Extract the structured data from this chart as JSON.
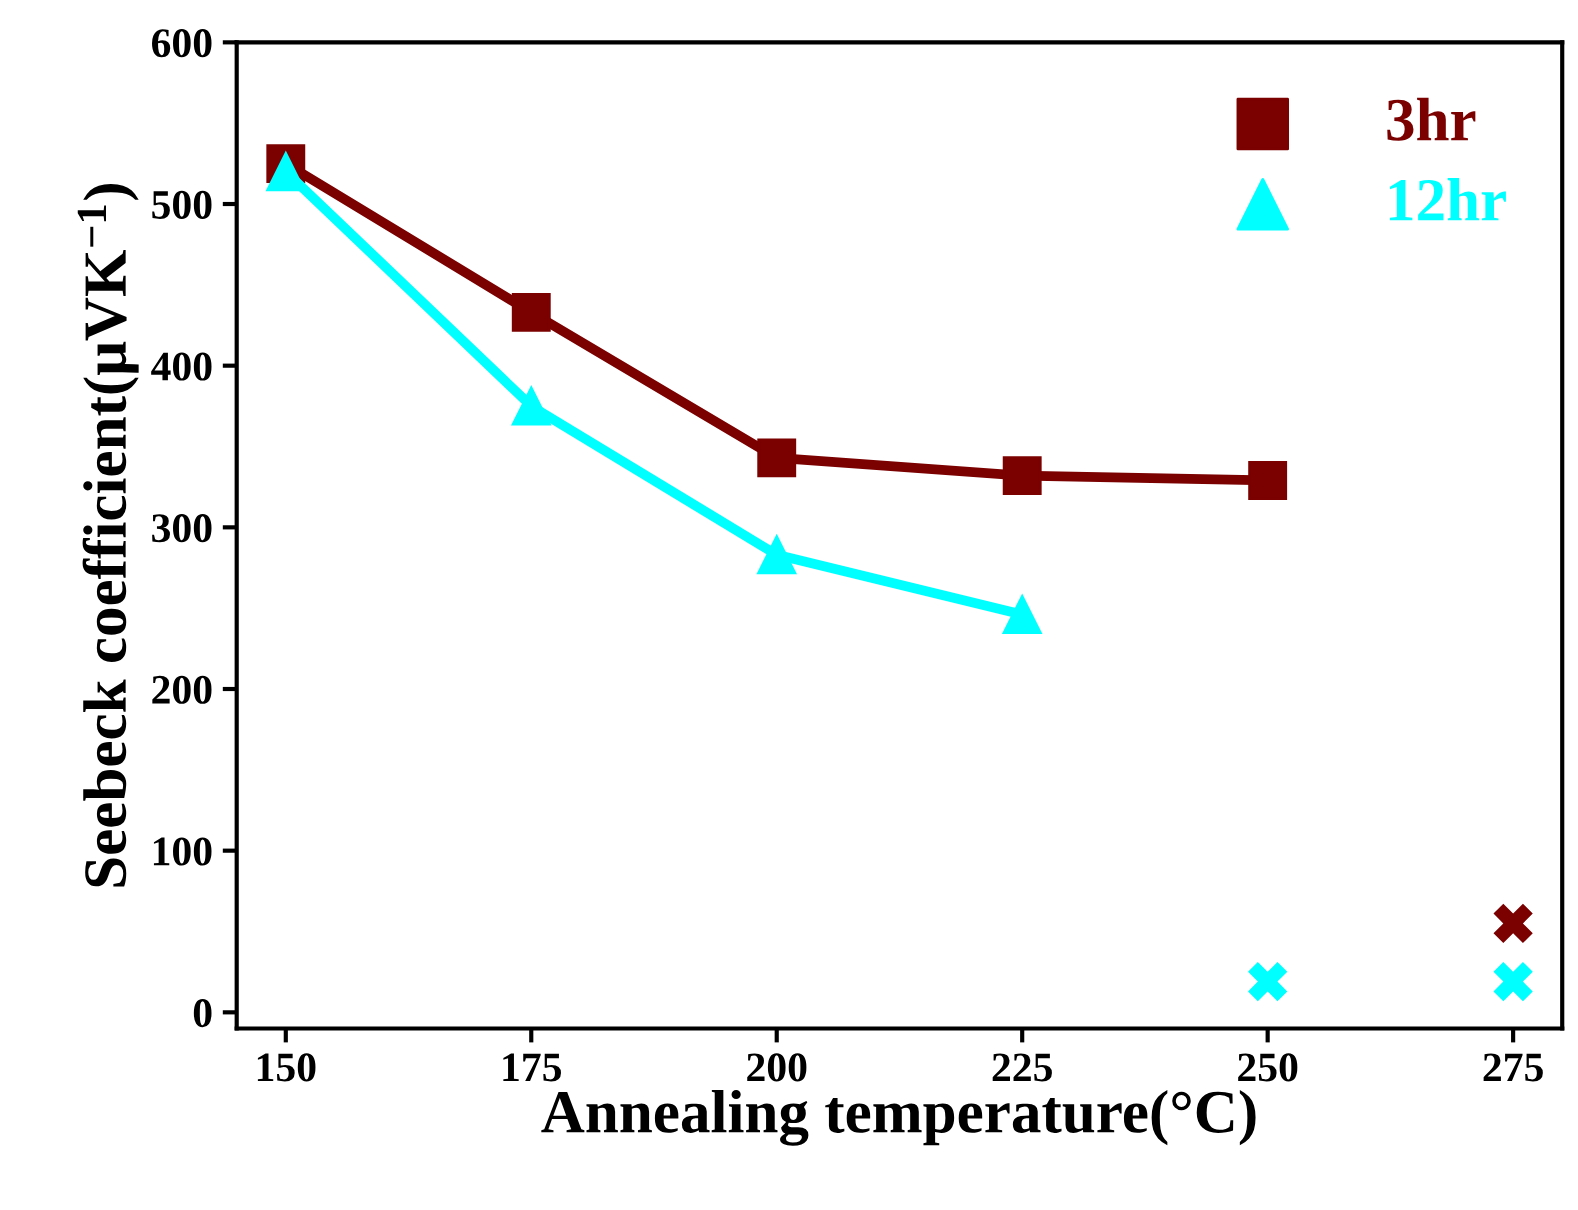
{
  "chart_data": {
    "type": "line",
    "xlabel": "Annealing temperature(°C)",
    "ylabel": "Seebeck coefficient(μVK$^{−1}$)",
    "xlim": [
      145,
      280
    ],
    "xticks": [
      150,
      175,
      200,
      225,
      250,
      275
    ],
    "ylim": [
      -10,
      600
    ],
    "yticks": [
      0,
      100,
      200,
      300,
      400,
      500,
      600
    ],
    "legend": "top right",
    "grid": false,
    "line_style": "solid",
    "series": [
      {
        "name": "3hr",
        "color": "#7b0000",
        "marker": "square",
        "x": [
          150,
          175,
          200,
          225,
          250
        ],
        "values": [
          525,
          433,
          343,
          332,
          329
        ]
      },
      {
        "name": "12hr",
        "color": "#00ffff",
        "marker": "triangle",
        "x": [
          150,
          175,
          200,
          225
        ],
        "values": [
          520,
          375,
          283,
          246
        ]
      },
      {
        "type": "scatter",
        "color": "#7b0000",
        "marker": "cross",
        "x": [
          275
        ],
        "values": [
          55
        ]
      },
      {
        "type": "scatter",
        "color": "#00ffff",
        "marker": "cross",
        "x": [
          250,
          275
        ],
        "values": [
          19,
          19
        ]
      }
    ]
  }
}
